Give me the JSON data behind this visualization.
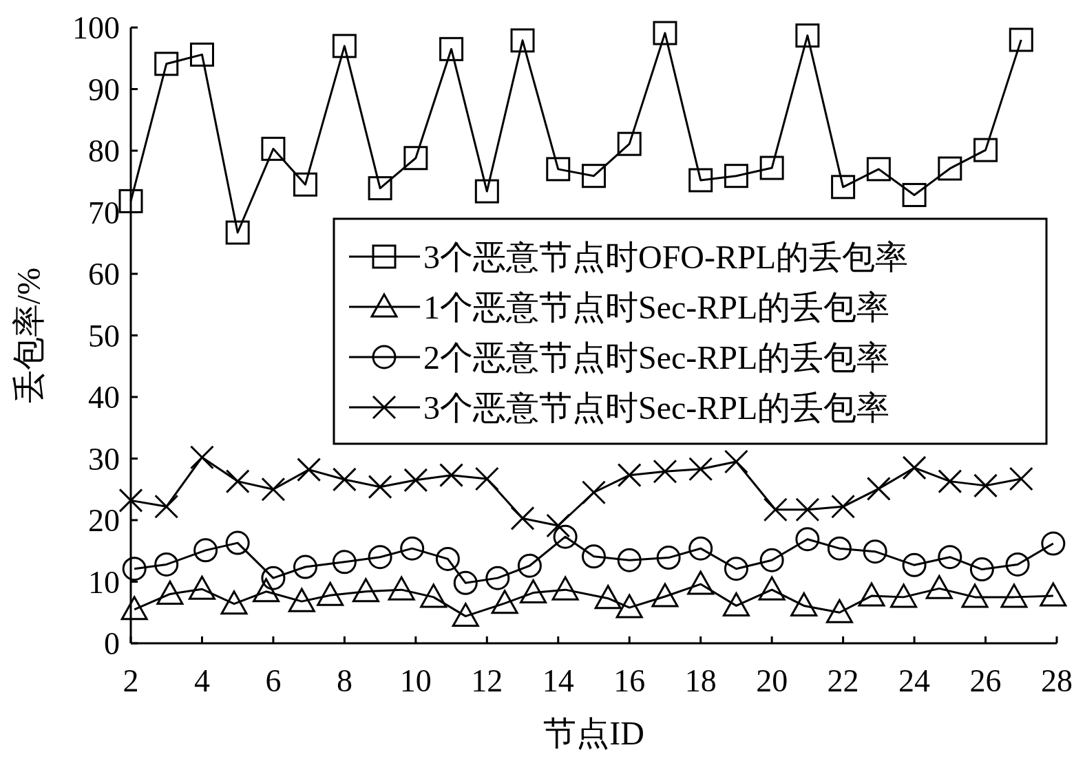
{
  "chart_data": {
    "type": "line",
    "xlabel": "节点ID",
    "ylabel": "丢包率/%",
    "xlim": [
      2,
      28
    ],
    "xticks": [
      2,
      4,
      6,
      8,
      10,
      12,
      14,
      16,
      18,
      20,
      22,
      24,
      26,
      28
    ],
    "ylim": [
      0,
      100
    ],
    "yticks": [
      0,
      10,
      20,
      30,
      40,
      50,
      60,
      70,
      80,
      90,
      100
    ],
    "grid": false,
    "legend": "right",
    "line_style": "solid",
    "series": [
      {
        "name": "3个恶意节点时OFO-RPL的丢包率",
        "color": "#000000",
        "marker": "square",
        "x": [
          2,
          3,
          4,
          5,
          6,
          6.9,
          8,
          9,
          10,
          11,
          12,
          13,
          14,
          15,
          16,
          17,
          18,
          19,
          20,
          21,
          22,
          23,
          24,
          25,
          26,
          27
        ],
        "values": [
          71.8,
          94.1,
          95.6,
          66.7,
          80.3,
          74.5,
          97.0,
          73.9,
          78.8,
          96.5,
          73.4,
          97.9,
          77.0,
          75.9,
          81.1,
          99.1,
          75.2,
          75.9,
          77.2,
          98.7,
          74.1,
          77.0,
          72.8,
          77.1,
          80.1,
          98.0
        ]
      },
      {
        "name": "1个恶意节点时Sec-RPL的丢包率",
        "color": "#000000",
        "marker": "triangle",
        "x": [
          2.1,
          3.1,
          4.0,
          4.9,
          5.8,
          6.8,
          7.6,
          8.6,
          9.6,
          10.5,
          11.4,
          12.5,
          13.3,
          14.2,
          15.4,
          16.0,
          17.0,
          18.0,
          19.0,
          20.0,
          20.9,
          21.9,
          22.8,
          23.7,
          24.7,
          25.7,
          26.8,
          27.9
        ],
        "values": [
          5.5,
          8.0,
          8.8,
          6.4,
          8.4,
          6.8,
          7.8,
          8.4,
          8.7,
          7.5,
          4.4,
          6.5,
          8.2,
          8.7,
          7.3,
          5.8,
          7.6,
          9.6,
          6.1,
          8.7,
          6.1,
          5.0,
          7.7,
          7.5,
          8.9,
          7.5,
          7.5,
          7.7
        ]
      },
      {
        "name": "2个恶意节点时Sec-RPL的丢包率",
        "color": "#000000",
        "marker": "circle",
        "x": [
          2.1,
          3.0,
          4.1,
          5.0,
          6.0,
          6.9,
          8.0,
          9.0,
          9.9,
          10.9,
          11.4,
          12.3,
          13.2,
          14.2,
          15.0,
          16.0,
          17.1,
          18.0,
          19.0,
          20.0,
          21.0,
          21.9,
          22.9,
          24.0,
          25.0,
          25.9,
          26.9,
          27.9
        ],
        "values": [
          12.1,
          12.8,
          15.1,
          16.3,
          10.6,
          12.4,
          13.2,
          14.0,
          15.4,
          13.7,
          9.8,
          10.6,
          12.6,
          17.3,
          14.1,
          13.5,
          13.9,
          15.4,
          12.1,
          13.5,
          16.9,
          15.4,
          14.9,
          12.7,
          14.0,
          12.0,
          12.8,
          16.2
        ]
      },
      {
        "name": "3个恶意节点时Sec-RPL的丢包率",
        "color": "#000000",
        "marker": "cross",
        "x": [
          2,
          3,
          4,
          5,
          6,
          7,
          8,
          9,
          10,
          11,
          12,
          13,
          14,
          15,
          16,
          17,
          18,
          19,
          20.1,
          21,
          22,
          23,
          24,
          25,
          26,
          27
        ],
        "values": [
          23.2,
          22.2,
          30.2,
          26.3,
          25.0,
          28.2,
          26.6,
          25.4,
          26.5,
          27.3,
          26.7,
          20.3,
          19.1,
          24.5,
          27.3,
          27.9,
          28.3,
          29.5,
          21.7,
          21.7,
          22.2,
          25.1,
          28.5,
          26.3,
          25.6,
          26.7
        ]
      }
    ]
  }
}
